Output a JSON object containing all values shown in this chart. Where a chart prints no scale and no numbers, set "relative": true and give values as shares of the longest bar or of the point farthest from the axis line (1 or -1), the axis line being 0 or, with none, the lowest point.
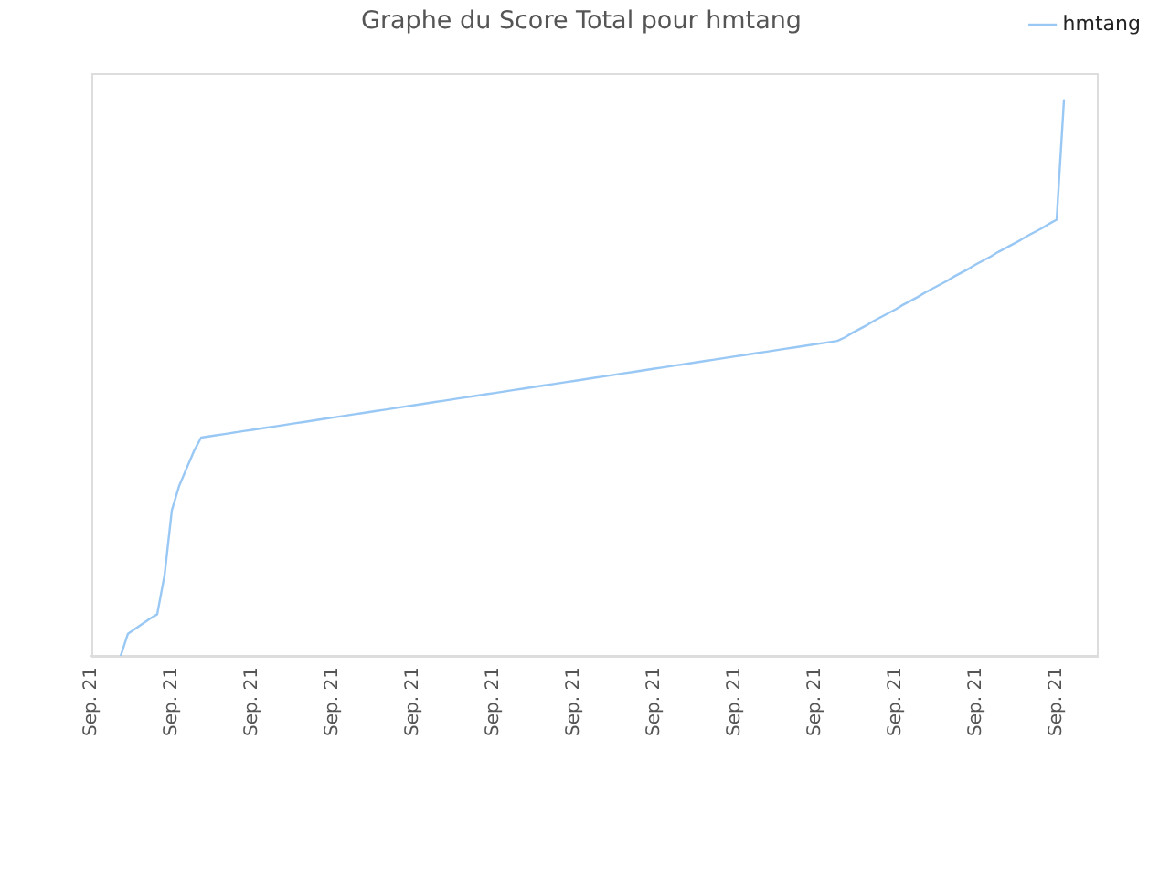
{
  "chart_data": {
    "type": "line",
    "title": "Graphe du Score Total pour hmtang",
    "relative": true,
    "categories": [
      "Sep. 21",
      null,
      null,
      null,
      null,
      null,
      null,
      null,
      null,
      null,
      null,
      "Sep. 21",
      null,
      null,
      null,
      null,
      null,
      null,
      null,
      null,
      null,
      null,
      "Sep. 21",
      null,
      null,
      null,
      null,
      null,
      null,
      null,
      null,
      null,
      null,
      "Sep. 21",
      null,
      null,
      null,
      null,
      null,
      null,
      null,
      null,
      null,
      null,
      "Sep. 21",
      null,
      null,
      null,
      null,
      null,
      null,
      null,
      null,
      null,
      null,
      "Sep. 21",
      null,
      null,
      null,
      null,
      null,
      null,
      null,
      null,
      null,
      null,
      "Sep. 21",
      null,
      null,
      null,
      null,
      null,
      null,
      null,
      null,
      null,
      null,
      "Sep. 21",
      null,
      null,
      null,
      null,
      null,
      null,
      null,
      null,
      null,
      null,
      "Sep. 21",
      null,
      null,
      null,
      null,
      null,
      null,
      null,
      null,
      null,
      null,
      "Sep. 21",
      null,
      null,
      null,
      null,
      null,
      null,
      null,
      null,
      null,
      null,
      "Sep. 21",
      null,
      null,
      null,
      null,
      null,
      null,
      null,
      null,
      null,
      null,
      "Sep. 21",
      null,
      null,
      null,
      null,
      null,
      null,
      null,
      null,
      null,
      null,
      "Sep. 21",
      null,
      null,
      null,
      null,
      null
    ],
    "series": [
      {
        "name": "hmtang",
        "color": "#99c8f5",
        "values": [
          null,
          null,
          null,
          null,
          0,
          0.04,
          0.049,
          0.058,
          0.067,
          0.075,
          0.145,
          0.262,
          0.306,
          0.337,
          0.368,
          0.393,
          0.395,
          0.397,
          0.399,
          0.401,
          0.403,
          0.405,
          0.407,
          0.409,
          0.411,
          0.413,
          0.415,
          0.417,
          0.419,
          0.421,
          0.423,
          0.425,
          0.427,
          0.429,
          0.431,
          0.433,
          0.435,
          0.437,
          0.439,
          0.441,
          0.443,
          0.445,
          0.447,
          0.449,
          0.451,
          0.453,
          0.455,
          0.457,
          0.459,
          0.461,
          0.463,
          0.465,
          0.467,
          0.469,
          0.471,
          0.473,
          0.475,
          0.477,
          0.479,
          0.481,
          0.483,
          0.485,
          0.487,
          0.489,
          0.491,
          0.493,
          0.495,
          0.497,
          0.499,
          0.501,
          0.503,
          0.505,
          0.507,
          0.509,
          0.511,
          0.513,
          0.515,
          0.517,
          0.519,
          0.521,
          0.523,
          0.525,
          0.527,
          0.529,
          0.531,
          0.533,
          0.535,
          0.537,
          0.539,
          0.541,
          0.543,
          0.545,
          0.547,
          0.549,
          0.551,
          0.553,
          0.555,
          0.557,
          0.559,
          0.561,
          0.563,
          0.565,
          0.567,
          0.573,
          0.581,
          0.588,
          0.595,
          0.603,
          0.61,
          0.617,
          0.624,
          0.632,
          0.639,
          0.646,
          0.654,
          0.661,
          0.668,
          0.675,
          0.683,
          0.69,
          0.697,
          0.705,
          0.712,
          0.719,
          0.727,
          0.734,
          0.741,
          0.748,
          0.756,
          0.763,
          0.77,
          0.778,
          0.785,
          1,
          null,
          null,
          null,
          null
        ]
      }
    ],
    "legend": "top right",
    "marker": "none",
    "line_style": "solid"
  }
}
